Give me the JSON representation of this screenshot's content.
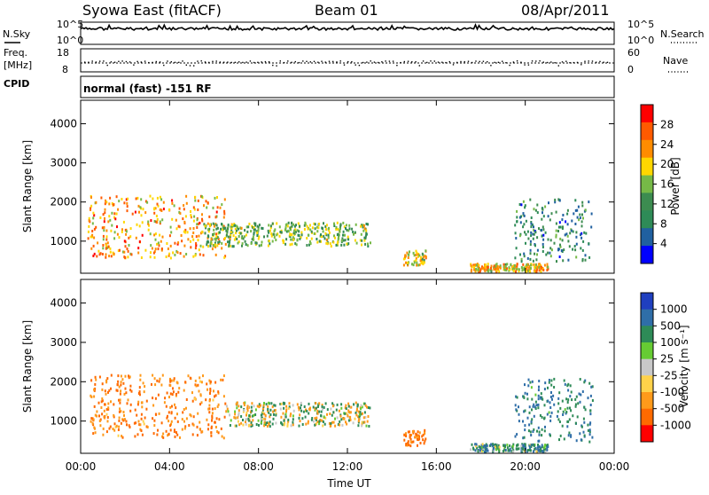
{
  "header": {
    "station": "Syowa East (fitACF)",
    "beam": "Beam 01",
    "date": "08/Apr/2011"
  },
  "status_panels": {
    "nsky_label": "N.Sky",
    "nsearch_label": "N.Search",
    "noise_ticks_left": [
      "10^5",
      "10^0"
    ],
    "noise_ticks_right": [
      "10^5",
      "10^0"
    ],
    "freq_label_1": "Freq.",
    "freq_label_2": "[MHz]",
    "freq_ticks": [
      "18",
      "8"
    ],
    "nave_label": "Nave",
    "nave_ticks": [
      "60",
      "0"
    ],
    "cpid_label": "CPID",
    "cpid_value": "normal (fast) -151 RF"
  },
  "chart_data": [
    {
      "type": "heatmap",
      "name": "power",
      "ylabel": "Slant Range [km]",
      "y_ticks": [
        "4000",
        "3000",
        "2000",
        "1000"
      ],
      "ylim": [
        180,
        4600
      ],
      "colorbar_label": "Power [dB]",
      "colorbar_ticks": [
        "28",
        "24",
        "20",
        "16",
        "12",
        "8",
        "4"
      ],
      "colorbar_colors": [
        "#ff0000",
        "#ff5a00",
        "#ff8c00",
        "#ffd700",
        "#76b947",
        "#3c8c50",
        "#2e8b57",
        "#2060a0",
        "#0000ff"
      ],
      "features": [
        {
          "t0": 0.3,
          "t1": 6.5,
          "r0": 600,
          "r1": 2200,
          "level": 22
        },
        {
          "t0": 5.5,
          "t1": 13.0,
          "r0": 900,
          "r1": 1500,
          "level": 14
        },
        {
          "t0": 14.5,
          "t1": 15.5,
          "r0": 400,
          "r1": 800,
          "level": 18
        },
        {
          "t0": 17.5,
          "t1": 21.0,
          "r0": 250,
          "r1": 450,
          "level": 20
        },
        {
          "t0": 19.5,
          "t1": 23.0,
          "r0": 500,
          "r1": 2100,
          "level": 8
        }
      ]
    },
    {
      "type": "heatmap",
      "name": "velocity",
      "ylabel": "Slant Range [km]",
      "y_ticks": [
        "4000",
        "3000",
        "2000",
        "1000"
      ],
      "ylim": [
        180,
        4600
      ],
      "colorbar_label": "Velocity [m s⁻¹]",
      "colorbar_ticks": [
        "1000",
        "500",
        "100",
        "25",
        "-25",
        "-100",
        "-500",
        "-1000"
      ],
      "colorbar_colors": [
        "#1f3fbf",
        "#2f6ea8",
        "#2e8b57",
        "#66cc33",
        "#c8c8c8",
        "#ffd24a",
        "#ff9a1a",
        "#ff6a00",
        "#ff0000"
      ],
      "features": [
        {
          "t0": 0.3,
          "t1": 6.5,
          "r0": 600,
          "r1": 2200,
          "vel": -300
        },
        {
          "t0": 6.5,
          "t1": 13.0,
          "r0": 900,
          "r1": 1500,
          "vel": 0
        },
        {
          "t0": 14.5,
          "t1": 15.5,
          "r0": 400,
          "r1": 800,
          "vel": -400
        },
        {
          "t0": 17.5,
          "t1": 21.0,
          "r0": 250,
          "r1": 450,
          "vel": 200
        },
        {
          "t0": 19.5,
          "t1": 23.0,
          "r0": 500,
          "r1": 2100,
          "vel": 300
        }
      ]
    }
  ],
  "x_axis": {
    "ticks": [
      "00:00",
      "04:00",
      "08:00",
      "12:00",
      "16:00",
      "20:00",
      "00:00"
    ],
    "label": "Time UT",
    "range_hours": [
      0,
      24
    ]
  }
}
